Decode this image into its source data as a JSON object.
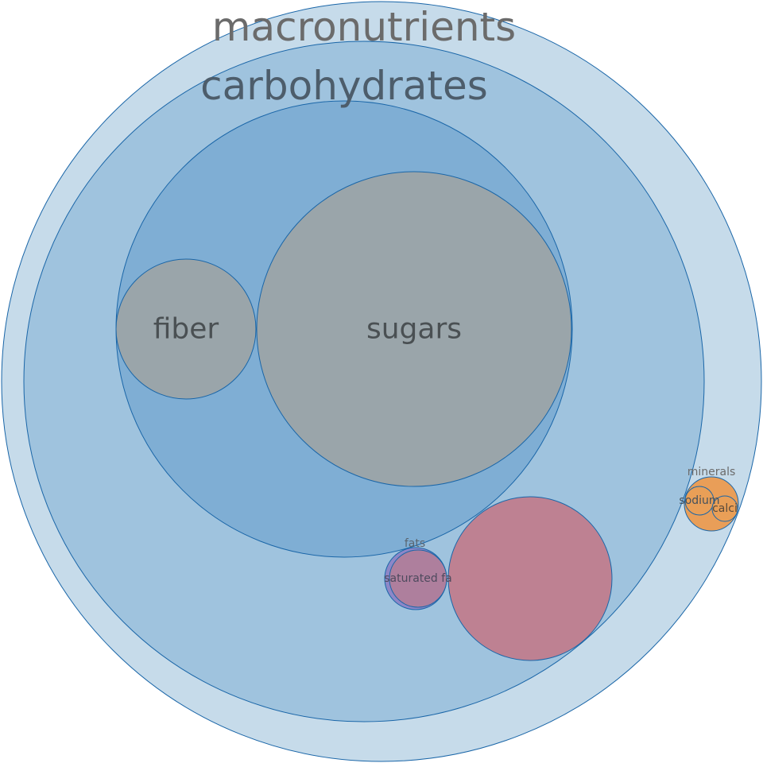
{
  "chart_data": {
    "type": "circle-packing",
    "colors": {
      "macronutrients": "#c6dbea",
      "carbohydrates": "#9fc3de",
      "carbohydrates-inner": "#7faed4",
      "leaf-gray": "#9aa5aa",
      "proteins-pink": "#be8192",
      "fats-purple": "#8d87c7",
      "saturated-mauve": "#ae7f9d",
      "minerals-orange": "#e99e58",
      "stroke": "#1a66a8"
    },
    "nodes": [
      {
        "id": "macronutrients",
        "label": "macronutrients",
        "fill": "#c6dbea",
        "children": [
          {
            "id": "carbohydrates",
            "label": "carbohydrates",
            "fill": "#9fc3de",
            "children": [
              {
                "id": "carbohydrates-inner",
                "label": "",
                "fill": "#7faed4",
                "children": [
                  {
                    "id": "sugars",
                    "label": "sugars",
                    "fill": "#9aa5aa"
                  },
                  {
                    "id": "fiber",
                    "label": "fiber",
                    "fill": "#9aa5aa"
                  }
                ]
              },
              {
                "id": "proteins",
                "label": "",
                "fill": "#be8192"
              },
              {
                "id": "fats",
                "label": "fats",
                "fill": "#8d87c7",
                "children": [
                  {
                    "id": "saturated-fat",
                    "label": "saturated fa",
                    "fill": "#ae7f9d"
                  }
                ]
              }
            ]
          },
          {
            "id": "minerals",
            "label": "minerals",
            "fill": "#e99e58",
            "children": [
              {
                "id": "sodium",
                "label": "sodium",
                "fill": "#e99e58"
              },
              {
                "id": "calcium",
                "label": "calci",
                "fill": "#e99e58"
              }
            ]
          }
        ]
      }
    ]
  }
}
